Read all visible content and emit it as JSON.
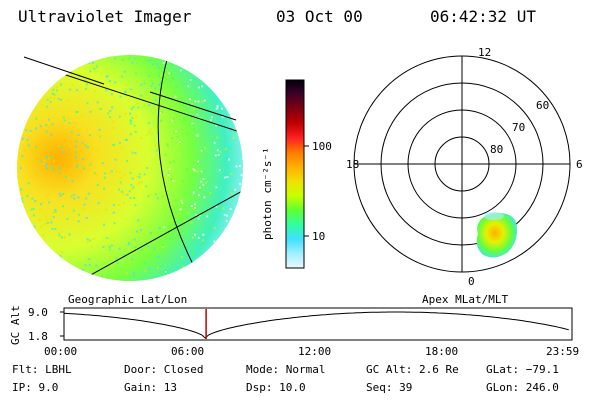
{
  "header": {
    "instrument": "Ultraviolet Imager",
    "date": "03 Oct 00",
    "time": "06:42:32 UT"
  },
  "left_panel": {
    "caption": "Geographic Lat/Lon"
  },
  "colorbar": {
    "unit_label": "photon cm⁻²s⁻¹",
    "ticks": [
      {
        "label": "100",
        "value": 100
      },
      {
        "label": "10",
        "value": 10
      }
    ],
    "colors": [
      "#000010",
      "#400028",
      "#800010",
      "#c00000",
      "#ff2020",
      "#ff7a00",
      "#ffb000",
      "#f0e000",
      "#c8ff00",
      "#60ff30",
      "#30ffa0",
      "#40e0ff",
      "#a0f0ff",
      "#e8f8ff"
    ]
  },
  "polar": {
    "caption": "Apex MLat/MLT",
    "ring_labels": [
      "60",
      "70",
      "80"
    ],
    "mlt_labels": {
      "top": "12",
      "left": "18",
      "right": "6",
      "bottom": "0"
    }
  },
  "timeline": {
    "axis_label": "GC Alt",
    "y_ticks": [
      "9.0",
      "1.8"
    ],
    "x_ticks": [
      "00:00",
      "06:00",
      "12:00",
      "18:00",
      "23:59"
    ],
    "marker_time": "06:42:32",
    "marker_color": "#c00000"
  },
  "status": {
    "flt": "Flt: LBHL",
    "ip": "IP:  9.0",
    "door": "Door: Closed",
    "gain": "Gain: 13",
    "mode": "Mode: Normal",
    "dsp": "Dsp:   10.0",
    "gc_alt": "GC Alt: 2.6 Re",
    "seq": "Seq: 39",
    "glat": "GLat: −79.1",
    "glon": "GLon: 246.0"
  }
}
